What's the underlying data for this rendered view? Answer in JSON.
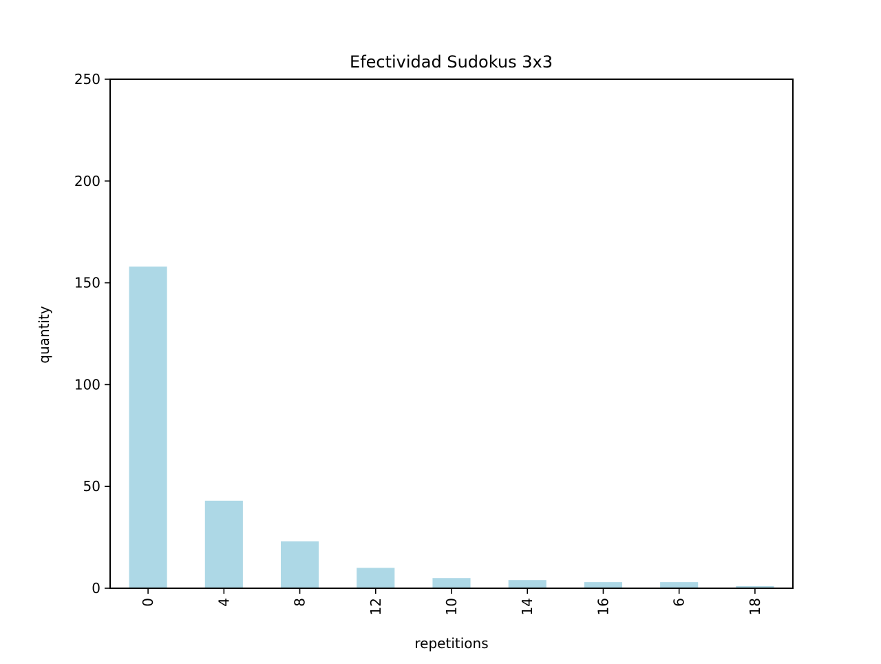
{
  "chart_data": {
    "type": "bar",
    "title": "Efectividad Sudokus 3x3",
    "xlabel": "repetitions",
    "ylabel": "quantity",
    "categories": [
      "0",
      "4",
      "8",
      "12",
      "10",
      "14",
      "16",
      "6",
      "18"
    ],
    "values": [
      158,
      43,
      23,
      10,
      5,
      4,
      3,
      3,
      1
    ],
    "ylim": [
      0,
      250
    ],
    "yticks": [
      0,
      50,
      100,
      150,
      200,
      250
    ],
    "grid": false,
    "legend": "none",
    "x_tick_rotation": "vertical",
    "colors": {
      "bar": "#add8e6",
      "axes": "#000000",
      "background": "#ffffff"
    }
  }
}
